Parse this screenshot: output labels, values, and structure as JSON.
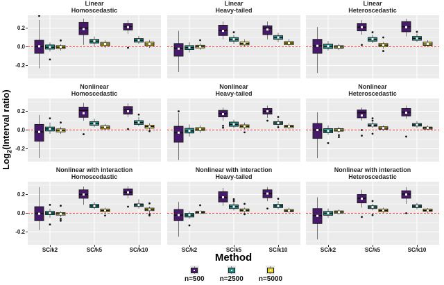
{
  "figure": {
    "y_axis_title": {
      "prefix": "Log",
      "sub": "2",
      "suffix": "(Interval ratio)"
    },
    "x_axis_title": "Method"
  },
  "chart_data": {
    "type": "boxplot",
    "layout": "3x3 facet grid",
    "x_categories": [
      "SC/k2",
      "SC/k5",
      "SC/k10"
    ],
    "series": [
      {
        "name": "n=500",
        "color": "#461a68"
      },
      {
        "name": "n=2500",
        "color": "#20908a"
      },
      {
        "name": "n=5000",
        "color": "#e8d926"
      }
    ],
    "y_ticks": [
      "0.2",
      "0.0",
      "-0.2"
    ],
    "y_tick_values": [
      0.2,
      0.0,
      -0.2
    ],
    "ylim": [
      -0.337,
      0.337
    ],
    "reference_line": {
      "y": 0,
      "color": "#fc3232",
      "style": "dashed"
    },
    "panel_bg": "#ebebeb",
    "grid_color": "#ffffff",
    "box_stats_format": [
      "whisker_low",
      "q1",
      "median",
      "q3",
      "whisker_high",
      "mean",
      "outliers"
    ],
    "facets": [
      {
        "title": [
          "Linear",
          "Homoscedastic"
        ],
        "boxes": [
          [
            -0.23,
            -0.07,
            0.005,
            0.07,
            0.285,
            0.005,
            [
              0.33
            ]
          ],
          [
            -0.05,
            -0.025,
            -0.005,
            0.02,
            0.045,
            -0.002,
            [
              -0.135
            ]
          ],
          [
            -0.04,
            -0.018,
            -0.004,
            0.012,
            0.03,
            0.0,
            [
              0.068
            ]
          ],
          [
            0.02,
            0.13,
            0.2,
            0.26,
            0.3,
            0.19
          ],
          [
            0.01,
            0.04,
            0.06,
            0.08,
            0.11,
            0.062
          ],
          [
            -0.01,
            0.012,
            0.03,
            0.047,
            0.07,
            0.03
          ],
          [
            0.14,
            0.18,
            0.215,
            0.25,
            0.285,
            0.21,
            [
              -0.01
            ]
          ],
          [
            0.03,
            0.05,
            0.07,
            0.088,
            0.115,
            0.07
          ],
          [
            -0.012,
            0.012,
            0.03,
            0.05,
            0.072,
            0.03
          ]
        ]
      },
      {
        "title": [
          "Linear",
          "Heavy-tailed"
        ],
        "boxes": [
          [
            -0.27,
            -0.1,
            -0.015,
            0.035,
            0.17,
            -0.02
          ],
          [
            -0.06,
            -0.03,
            -0.01,
            0.012,
            0.05,
            -0.008
          ],
          [
            -0.032,
            -0.012,
            0.002,
            0.016,
            0.038,
            0.002,
            [
              0.07
            ]
          ],
          [
            0.08,
            0.12,
            0.175,
            0.23,
            0.27,
            0.17
          ],
          [
            0.03,
            0.06,
            0.08,
            0.1,
            0.13,
            0.08,
            [
              0.155
            ]
          ],
          [
            0.0,
            0.02,
            0.035,
            0.052,
            0.08,
            0.036
          ],
          [
            0.08,
            0.13,
            0.2,
            0.225,
            0.27,
            0.185
          ],
          [
            0.05,
            0.08,
            0.1,
            0.12,
            0.15,
            0.1
          ],
          [
            0.0,
            0.022,
            0.04,
            0.056,
            0.082,
            0.04
          ]
        ]
      },
      {
        "title": [
          "Linear",
          "Heteroscedastic"
        ],
        "boxes": [
          [
            -0.28,
            -0.07,
            0.01,
            0.08,
            0.21,
            0.01
          ],
          [
            -0.04,
            -0.018,
            0.005,
            0.03,
            0.062,
            0.006
          ],
          [
            -0.035,
            -0.015,
            -0.002,
            0.012,
            0.032,
            -0.001
          ],
          [
            0.13,
            0.17,
            0.21,
            0.25,
            0.285,
            0.21,
            [
              0.02
            ]
          ],
          [
            0.04,
            0.06,
            0.08,
            0.1,
            0.13,
            0.082,
            [
              0.155
            ]
          ],
          [
            -0.02,
            0.002,
            0.018,
            0.035,
            0.052,
            0.018,
            [
              0.1,
              -0.045
            ]
          ],
          [
            0.11,
            0.16,
            0.215,
            0.27,
            0.3,
            0.21
          ],
          [
            0.05,
            0.07,
            0.09,
            0.11,
            0.14,
            0.09,
            [
              0.16
            ]
          ],
          [
            -0.005,
            0.015,
            0.03,
            0.05,
            0.07,
            0.032
          ]
        ]
      },
      {
        "title": [
          "Nonlinear",
          "Homoscedastic"
        ],
        "boxes": [
          [
            -0.3,
            -0.12,
            -0.02,
            0.06,
            0.16,
            -0.02
          ],
          [
            -0.04,
            -0.01,
            0.012,
            0.032,
            0.08,
            0.012,
            [
              0.125
            ]
          ],
          [
            -0.042,
            -0.02,
            -0.005,
            0.012,
            0.035,
            -0.004,
            [
              0.08
            ]
          ],
          [
            0.1,
            0.135,
            0.21,
            0.245,
            0.29,
            0.18,
            [
              -0.045
            ]
          ],
          [
            0.03,
            0.05,
            0.07,
            0.09,
            0.12,
            0.07
          ],
          [
            -0.005,
            0.012,
            0.03,
            0.045,
            0.065,
            0.03
          ],
          [
            0.14,
            0.17,
            0.215,
            0.25,
            0.285,
            0.2,
            [
              0.01
            ]
          ],
          [
            0.04,
            0.06,
            0.08,
            0.1,
            0.14,
            0.082,
            [
              0.165
            ]
          ],
          [
            0.0,
            0.02,
            0.038,
            0.052,
            0.072,
            0.038,
            [
              -0.012
            ]
          ]
        ]
      },
      {
        "title": [
          "Nonlinear",
          "Heavy-tailed"
        ],
        "boxes": [
          [
            -0.32,
            -0.13,
            -0.03,
            0.04,
            0.18,
            -0.028,
            [
              0.2
            ]
          ],
          [
            -0.07,
            -0.032,
            -0.01,
            0.018,
            0.06,
            -0.008
          ],
          [
            -0.03,
            -0.006,
            0.01,
            0.026,
            0.05,
            0.01
          ],
          [
            0.1,
            0.14,
            0.175,
            0.21,
            0.24,
            0.17,
            [
              0.045,
              0.025
            ]
          ],
          [
            0.02,
            0.04,
            0.06,
            0.085,
            0.11,
            0.062
          ],
          [
            0.005,
            0.025,
            0.04,
            0.055,
            0.08,
            0.04,
            [
              -0.025
            ]
          ],
          [
            0.13,
            0.17,
            0.2,
            0.23,
            0.26,
            0.2,
            [
              0.1
            ]
          ],
          [
            0.04,
            0.06,
            0.075,
            0.09,
            0.12,
            0.075,
            [
              0.14,
              0.03
            ]
          ],
          [
            0.01,
            0.025,
            0.04,
            0.05,
            0.07,
            0.038
          ]
        ]
      },
      {
        "title": [
          "Nonlinear",
          "Heteroscedastic"
        ],
        "boxes": [
          [
            -0.3,
            -0.09,
            0.0,
            0.07,
            0.19,
            0.0
          ],
          [
            -0.05,
            -0.03,
            -0.01,
            0.015,
            0.05,
            -0.01,
            [
              -0.14
            ]
          ],
          [
            -0.03,
            -0.012,
            0.0,
            0.015,
            0.035,
            0.0,
            [
              -0.055,
              -0.075
            ]
          ],
          [
            0.1,
            0.13,
            0.185,
            0.215,
            0.24,
            0.155,
            [
              0.0,
              -0.06
            ]
          ],
          [
            0.02,
            0.04,
            0.05,
            0.065,
            0.085,
            0.05,
            [
              0.125,
              0.1,
              -0.04
            ]
          ],
          [
            -0.01,
            0.008,
            0.02,
            0.035,
            0.05,
            0.02
          ],
          [
            0.12,
            0.15,
            0.19,
            0.23,
            0.26,
            0.185,
            [
              -0.07
            ]
          ],
          [
            0.02,
            0.042,
            0.055,
            0.07,
            0.095,
            0.056
          ],
          [
            0.0,
            0.01,
            0.022,
            0.032,
            0.048,
            0.022
          ]
        ]
      },
      {
        "title": [
          "Nonlinear with interaction",
          "Homoscedastic"
        ],
        "boxes": [
          [
            -0.18,
            -0.08,
            0.0,
            0.07,
            0.28,
            -0.005
          ],
          [
            -0.05,
            -0.015,
            0.002,
            0.02,
            0.05,
            0.002,
            [
              0.09,
              -0.12
            ]
          ],
          [
            -0.04,
            -0.02,
            -0.006,
            0.006,
            0.02,
            -0.006,
            [
              0.08,
              -0.06,
              -0.08
            ]
          ],
          [
            0.09,
            0.16,
            0.2,
            0.25,
            0.285,
            0.2
          ],
          [
            0.04,
            0.06,
            0.078,
            0.095,
            0.12,
            0.078
          ],
          [
            -0.01,
            0.016,
            0.03,
            0.045,
            0.06,
            0.03,
            [
              -0.025
            ]
          ],
          [
            0.16,
            0.195,
            0.225,
            0.26,
            0.29,
            0.222,
            [
              0.07
            ]
          ],
          [
            0.05,
            0.072,
            0.088,
            0.1,
            0.15,
            0.088
          ],
          [
            0.0,
            0.028,
            0.04,
            0.055,
            0.07,
            0.04,
            [
              0.105,
              -0.012,
              -0.025
            ]
          ]
        ]
      },
      {
        "title": [
          "Nonlinear with interaction",
          "Heavy-tailed"
        ],
        "boxes": [
          [
            -0.25,
            -0.08,
            -0.02,
            0.04,
            0.12,
            -0.02
          ],
          [
            -0.06,
            -0.04,
            -0.02,
            0.0,
            0.02,
            -0.018,
            [
              -0.13
            ]
          ],
          [
            -0.01,
            0.0,
            0.01,
            0.02,
            0.03,
            0.01,
            [
              0.085
            ]
          ],
          [
            0.08,
            0.12,
            0.17,
            0.23,
            0.27,
            0.17
          ],
          [
            0.03,
            0.05,
            0.07,
            0.09,
            0.12,
            0.07,
            [
              0.15,
              0.13
            ]
          ],
          [
            0.0,
            0.02,
            0.032,
            0.046,
            0.06,
            0.032,
            [
              0.1,
              -0.01
            ]
          ],
          [
            0.13,
            0.165,
            0.21,
            0.25,
            0.28,
            0.21,
            [
              0.05
            ]
          ],
          [
            0.04,
            0.06,
            0.078,
            0.096,
            0.13,
            0.078,
            [
              0.155
            ]
          ],
          [
            0.0,
            0.016,
            0.026,
            0.04,
            0.06,
            0.027
          ]
        ]
      },
      {
        "title": [
          "Nonlinear with interaction",
          "Heteroscedastic"
        ],
        "boxes": [
          [
            -0.28,
            -0.11,
            -0.025,
            0.05,
            0.17,
            -0.028
          ],
          [
            -0.05,
            -0.022,
            0.0,
            0.02,
            0.05,
            0.0
          ],
          [
            -0.015,
            0.0,
            0.012,
            0.025,
            0.04,
            0.012
          ],
          [
            0.06,
            0.11,
            0.16,
            0.2,
            0.25,
            0.155,
            [
              -0.04
            ]
          ],
          [
            0.03,
            0.05,
            0.066,
            0.08,
            0.1,
            0.066,
            [
              0.13,
              -0.02
            ]
          ],
          [
            -0.005,
            0.015,
            0.03,
            0.045,
            0.06,
            0.03
          ],
          [
            0.1,
            0.16,
            0.205,
            0.24,
            0.28,
            0.2,
            [
              0.0
            ]
          ],
          [
            0.04,
            0.06,
            0.076,
            0.09,
            0.11,
            0.076
          ],
          [
            0.005,
            0.02,
            0.03,
            0.045,
            0.056,
            0.03
          ]
        ]
      }
    ]
  }
}
